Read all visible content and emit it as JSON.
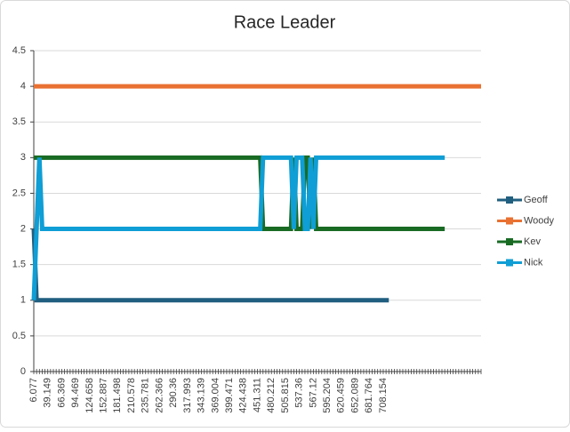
{
  "chart_data": {
    "type": "line",
    "title": "Race Leader",
    "legend": "right",
    "grid": true,
    "ylim": [
      0,
      4.5
    ],
    "yticks": [
      0,
      0.5,
      1,
      1.5,
      2,
      2.5,
      3,
      3.5,
      4,
      4.5
    ],
    "categories": [
      "6.077",
      null,
      null,
      null,
      null,
      "39.149",
      null,
      null,
      null,
      null,
      "66.369",
      null,
      null,
      null,
      null,
      "94.469",
      null,
      null,
      null,
      null,
      "124.658",
      null,
      null,
      null,
      null,
      "152.887",
      null,
      null,
      null,
      null,
      "181.498",
      null,
      null,
      null,
      null,
      "210.578",
      null,
      null,
      null,
      null,
      "235.781",
      null,
      null,
      null,
      null,
      "262.366",
      null,
      null,
      null,
      null,
      "290.36",
      null,
      null,
      null,
      null,
      "317.993",
      null,
      null,
      null,
      null,
      "343.139",
      null,
      null,
      null,
      null,
      "369.004",
      null,
      null,
      null,
      null,
      "399.471",
      null,
      null,
      null,
      null,
      "424.438",
      null,
      null,
      null,
      null,
      "451.311",
      null,
      null,
      null,
      null,
      "480.212",
      null,
      null,
      null,
      null,
      "505.815",
      null,
      null,
      null,
      null,
      "537.36",
      null,
      null,
      null,
      null,
      "567.12",
      null,
      null,
      null,
      null,
      "595.204",
      null,
      null,
      null,
      null,
      "620.459",
      null,
      null,
      null,
      null,
      "652.089",
      null,
      null,
      null,
      null,
      "681.764",
      null,
      null,
      null,
      null,
      "708.154",
      null,
      null,
      null,
      null,
      null,
      null,
      null,
      null,
      null,
      null,
      null,
      null,
      null,
      null,
      null,
      null,
      null,
      null,
      null,
      null,
      null,
      null,
      null,
      null,
      null,
      null,
      null,
      null,
      null,
      null,
      null,
      null,
      null,
      null,
      null
    ],
    "series": [
      {
        "name": "Geoff",
        "color": "#215f80",
        "values": [
          2,
          1,
          1,
          1,
          1,
          1,
          1,
          1,
          1,
          1,
          1,
          1,
          1,
          1,
          1,
          1,
          1,
          1,
          1,
          1,
          1,
          1,
          1,
          1,
          1,
          1,
          1,
          1,
          1,
          1,
          1,
          1,
          1,
          1,
          1,
          1,
          1,
          1,
          1,
          1,
          1,
          1,
          1,
          1,
          1,
          1,
          1,
          1,
          1,
          1,
          1,
          1,
          1,
          1,
          1,
          1,
          1,
          1,
          1,
          1,
          1,
          1,
          1,
          1,
          1,
          1,
          1,
          1,
          1,
          1,
          1,
          1,
          1,
          1,
          1,
          1,
          1,
          1,
          1,
          1,
          1,
          1,
          1,
          1,
          1,
          1,
          1,
          1,
          1,
          1,
          1,
          1,
          1,
          1,
          1,
          1,
          1,
          1,
          1,
          1,
          1,
          1,
          1,
          1,
          1,
          1,
          1,
          1,
          1,
          1,
          1,
          1,
          1,
          1,
          1,
          1,
          1,
          1,
          1,
          1,
          1,
          1,
          1,
          1,
          1,
          1,
          1,
          1,
          null,
          null,
          null,
          null,
          null,
          null,
          null,
          null,
          null,
          null,
          null,
          null,
          null,
          null,
          null,
          null,
          null,
          null,
          null,
          null,
          null,
          null,
          null,
          null,
          null,
          null,
          null,
          null,
          null,
          null,
          null,
          null,
          null
        ]
      },
      {
        "name": "Woody",
        "color": "#e97132",
        "values": [
          4,
          4,
          4,
          4,
          4,
          4,
          4,
          4,
          4,
          4,
          4,
          4,
          4,
          4,
          4,
          4,
          4,
          4,
          4,
          4,
          4,
          4,
          4,
          4,
          4,
          4,
          4,
          4,
          4,
          4,
          4,
          4,
          4,
          4,
          4,
          4,
          4,
          4,
          4,
          4,
          4,
          4,
          4,
          4,
          4,
          4,
          4,
          4,
          4,
          4,
          4,
          4,
          4,
          4,
          4,
          4,
          4,
          4,
          4,
          4,
          4,
          4,
          4,
          4,
          4,
          4,
          4,
          4,
          4,
          4,
          4,
          4,
          4,
          4,
          4,
          4,
          4,
          4,
          4,
          4,
          4,
          4,
          4,
          4,
          4,
          4,
          4,
          4,
          4,
          4,
          4,
          4,
          4,
          4,
          4,
          4,
          4,
          4,
          4,
          4,
          4,
          4,
          4,
          4,
          4,
          4,
          4,
          4,
          4,
          4,
          4,
          4,
          4,
          4,
          4,
          4,
          4,
          4,
          4,
          4,
          4,
          4,
          4,
          4,
          4,
          4,
          4,
          4,
          4,
          4,
          4,
          4,
          4,
          4,
          4,
          4,
          4,
          4,
          4,
          4,
          4,
          4,
          4,
          4,
          4,
          4,
          4,
          4,
          4,
          4,
          4,
          4,
          4,
          4,
          4,
          4,
          4,
          4,
          4,
          4,
          4
        ]
      },
      {
        "name": "Kev",
        "color": "#196b24",
        "values": [
          3,
          3,
          3,
          3,
          3,
          3,
          3,
          3,
          3,
          3,
          3,
          3,
          3,
          3,
          3,
          3,
          3,
          3,
          3,
          3,
          3,
          3,
          3,
          3,
          3,
          3,
          3,
          3,
          3,
          3,
          3,
          3,
          3,
          3,
          3,
          3,
          3,
          3,
          3,
          3,
          3,
          3,
          3,
          3,
          3,
          3,
          3,
          3,
          3,
          3,
          3,
          3,
          3,
          3,
          3,
          3,
          3,
          3,
          3,
          3,
          3,
          3,
          3,
          3,
          3,
          3,
          3,
          3,
          3,
          3,
          3,
          3,
          3,
          3,
          3,
          3,
          3,
          3,
          3,
          3,
          3,
          3,
          2,
          2,
          2,
          2,
          2,
          2,
          2,
          2,
          2,
          2,
          2,
          3,
          2,
          2,
          2,
          3,
          3,
          2,
          3,
          2,
          2,
          2,
          2,
          2,
          2,
          2,
          2,
          2,
          2,
          2,
          2,
          2,
          2,
          2,
          2,
          2,
          2,
          2,
          2,
          2,
          2,
          2,
          2,
          2,
          2,
          2,
          2,
          2,
          2,
          2,
          2,
          2,
          2,
          2,
          2,
          2,
          2,
          2,
          2,
          2,
          2,
          2,
          2,
          2,
          2,
          2,
          null,
          null,
          null,
          null,
          null,
          null,
          null,
          null,
          null,
          null,
          null,
          null,
          null
        ]
      },
      {
        "name": "Nick",
        "color": "#0f9ed5",
        "values": [
          1,
          2,
          3,
          2,
          2,
          2,
          2,
          2,
          2,
          2,
          2,
          2,
          2,
          2,
          2,
          2,
          2,
          2,
          2,
          2,
          2,
          2,
          2,
          2,
          2,
          2,
          2,
          2,
          2,
          2,
          2,
          2,
          2,
          2,
          2,
          2,
          2,
          2,
          2,
          2,
          2,
          2,
          2,
          2,
          2,
          2,
          2,
          2,
          2,
          2,
          2,
          2,
          2,
          2,
          2,
          2,
          2,
          2,
          2,
          2,
          2,
          2,
          2,
          2,
          2,
          2,
          2,
          2,
          2,
          2,
          2,
          2,
          2,
          2,
          2,
          2,
          2,
          2,
          2,
          2,
          2,
          2,
          3,
          3,
          3,
          3,
          3,
          3,
          3,
          3,
          3,
          3,
          3,
          2,
          3,
          3,
          3,
          2,
          2,
          3,
          2,
          3,
          3,
          3,
          3,
          3,
          3,
          3,
          3,
          3,
          3,
          3,
          3,
          3,
          3,
          3,
          3,
          3,
          3,
          3,
          3,
          3,
          3,
          3,
          3,
          3,
          3,
          3,
          3,
          3,
          3,
          3,
          3,
          3,
          3,
          3,
          3,
          3,
          3,
          3,
          3,
          3,
          3,
          3,
          3,
          3,
          3,
          3,
          null,
          null,
          null,
          null,
          null,
          null,
          null,
          null,
          null,
          null,
          null,
          null,
          null
        ]
      }
    ]
  }
}
